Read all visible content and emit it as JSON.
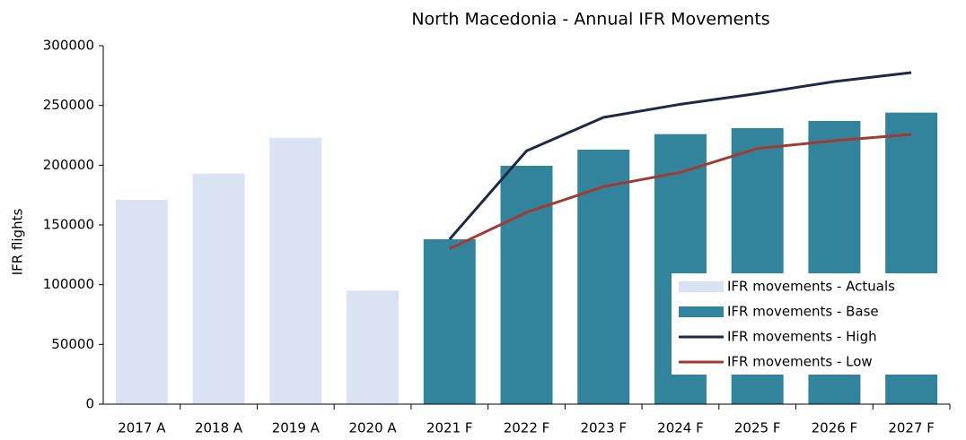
{
  "chart_data": {
    "type": "combo",
    "title": "North Macedonia - Annual IFR Movements",
    "y_label": "IFR flights",
    "categories": [
      "2017 A",
      "2018 A",
      "2019 A",
      "2020 A",
      "2021 F",
      "2022 F",
      "2023 F",
      "2024 F",
      "2025 F",
      "2026 F",
      "2027 F"
    ],
    "series": [
      {
        "name": "IFR movements - Actuals",
        "type": "bar",
        "color": "#dae3f3",
        "values": [
          171000,
          193000,
          223000,
          95000,
          null,
          null,
          null,
          null,
          null,
          null,
          null
        ]
      },
      {
        "name": "IFR movements - Base",
        "type": "bar",
        "color": "#31849b",
        "values": [
          null,
          null,
          null,
          null,
          138000,
          199500,
          213000,
          226000,
          231000,
          237000,
          244000
        ]
      },
      {
        "name": "IFR movements - High",
        "type": "line",
        "color": "#1c2a4a",
        "values": [
          null,
          null,
          null,
          null,
          138000,
          212000,
          240000,
          251000,
          260000,
          270000,
          277500
        ]
      },
      {
        "name": "IFR movements - Low",
        "type": "line",
        "color": "#a33a30",
        "values": [
          null,
          null,
          null,
          null,
          130000,
          160500,
          182000,
          194000,
          214000,
          220500,
          225750
        ]
      }
    ],
    "ylim": [
      0,
      300000
    ],
    "yticks": [
      0,
      50000,
      100000,
      150000,
      200000,
      250000,
      300000
    ],
    "grid": false,
    "legend": "right"
  }
}
